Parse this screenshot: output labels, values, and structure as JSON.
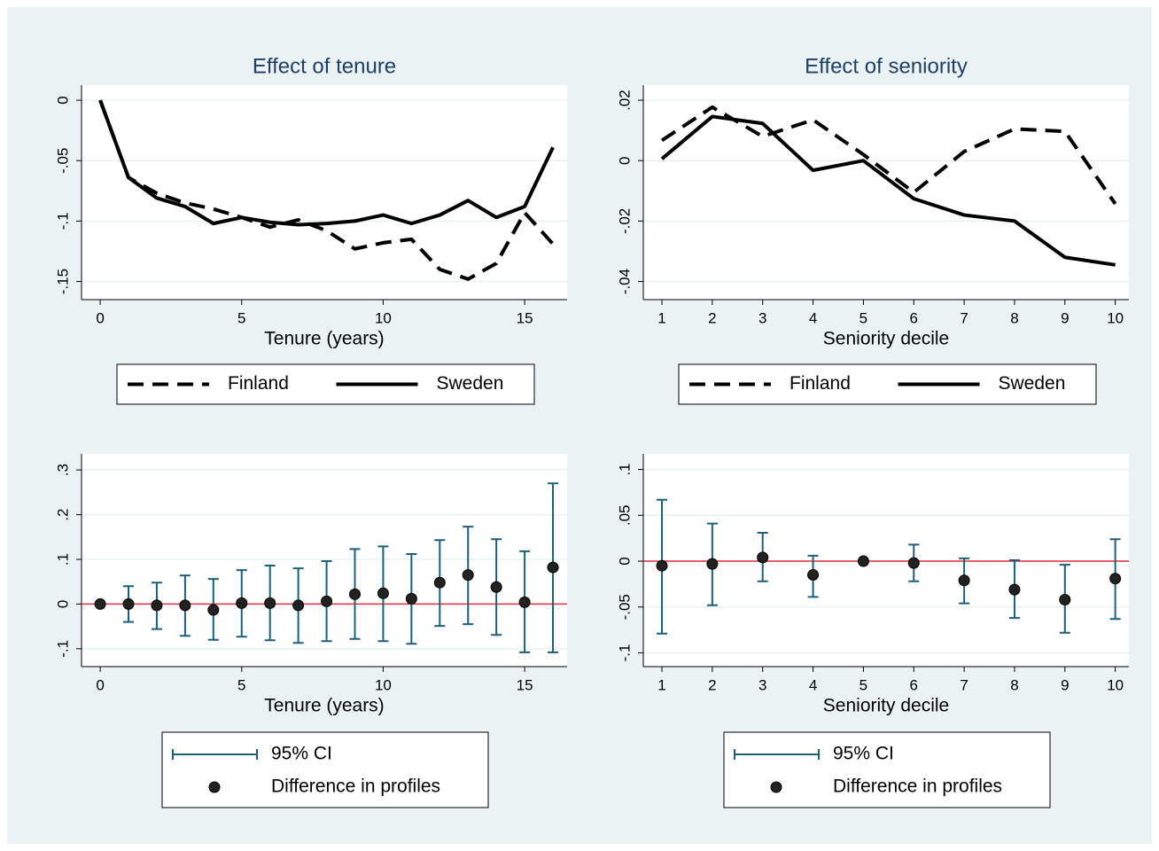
{
  "chart_data": [
    {
      "type": "line",
      "title": "Effect of tenure",
      "x_label": "Tenure (years)",
      "x": [
        0,
        1,
        2,
        3,
        4,
        5,
        6,
        7,
        8,
        9,
        10,
        11,
        12,
        13,
        14,
        15,
        16
      ],
      "series": [
        {
          "name": "Finland",
          "color": "#000000",
          "style": "dashed",
          "values": [
            0,
            -0.064,
            -0.077,
            -0.085,
            -0.09,
            -0.097,
            -0.105,
            -0.099,
            -0.108,
            -0.123,
            -0.118,
            -0.115,
            -0.14,
            -0.148,
            -0.135,
            -0.093,
            -0.119
          ]
        },
        {
          "name": "Sweden",
          "color": "#000000",
          "style": "solid",
          "values": [
            0,
            -0.064,
            -0.081,
            -0.088,
            -0.102,
            -0.097,
            -0.101,
            -0.103,
            -0.102,
            -0.1,
            -0.095,
            -0.102,
            -0.095,
            -0.083,
            -0.097,
            -0.088,
            -0.039
          ]
        }
      ],
      "xlim": [
        -0.66,
        16.5
      ],
      "xticks": [
        0,
        5,
        10,
        15
      ],
      "ylim": [
        -0.165,
        0.0125
      ],
      "yticks": [
        0,
        {
          "value": -0.05,
          "label": "-.05"
        },
        {
          "value": -0.1,
          "label": "-.1"
        },
        {
          "value": -0.15,
          "label": "-.15"
        }
      ],
      "grid": true,
      "legend": "below"
    },
    {
      "type": "line",
      "title": "Effect of seniority",
      "x_label": "Seniority decile",
      "x": [
        1,
        2,
        3,
        4,
        5,
        6,
        7,
        8,
        9,
        10
      ],
      "series": [
        {
          "name": "Finland",
          "color": "#000000",
          "style": "dashed",
          "values": [
            0.0067,
            0.0177,
            0.008,
            0.0135,
            0.002,
            -0.0105,
            0.003,
            0.0105,
            0.0097,
            -0.0143
          ]
        },
        {
          "name": "Sweden",
          "color": "#000000",
          "style": "solid",
          "values": [
            0.0006,
            0.0146,
            0.0123,
            -0.0032,
            0,
            -0.0126,
            -0.018,
            -0.02,
            -0.032,
            -0.0345
          ]
        }
      ],
      "xlim": [
        0.63,
        10.27
      ],
      "xticks": [
        1,
        2,
        3,
        4,
        5,
        6,
        7,
        8,
        9,
        10
      ],
      "ylim": [
        -0.046,
        0.025
      ],
      "yticks": [
        {
          "value": 0.02,
          "label": ".02"
        },
        0,
        {
          "value": -0.02,
          "label": "-.02"
        },
        {
          "value": -0.04,
          "label": "-.04"
        }
      ],
      "grid": true,
      "legend": "below"
    },
    {
      "type": "errorbar",
      "x_label": "Tenure (years)",
      "x": [
        0,
        1,
        2,
        3,
        4,
        5,
        6,
        7,
        8,
        9,
        10,
        11,
        12,
        13,
        14,
        15,
        16
      ],
      "series": [
        {
          "name": "95% CI",
          "color": "#1f5f7a",
          "lower": [
            0,
            -0.04,
            -0.056,
            -0.071,
            -0.08,
            -0.073,
            -0.081,
            -0.087,
            -0.083,
            -0.078,
            -0.083,
            -0.089,
            -0.049,
            -0.045,
            -0.069,
            -0.108,
            -0.108
          ],
          "upper": [
            0,
            0.04,
            0.048,
            0.064,
            0.056,
            0.076,
            0.086,
            0.08,
            0.096,
            0.123,
            0.129,
            0.112,
            0.143,
            0.173,
            0.145,
            0.118,
            0.27
          ]
        },
        {
          "name": "Difference in profiles",
          "color": "#222222",
          "values": [
            0,
            0,
            -0.003,
            -0.003,
            -0.013,
            0.002,
            0.002,
            -0.003,
            0.006,
            0.022,
            0.024,
            0.012,
            0.048,
            0.065,
            0.038,
            0.004,
            0.082
          ]
        }
      ],
      "hline": 0,
      "hline_color": "#e0303d",
      "xlim": [
        -0.66,
        16.5
      ],
      "xticks": [
        0,
        5,
        10,
        15
      ],
      "ylim": [
        -0.14,
        0.336
      ],
      "yticks": [
        {
          "value": 0.3,
          "label": ".3"
        },
        {
          "value": 0.2,
          "label": ".2"
        },
        {
          "value": 0.1,
          "label": ".1"
        },
        0,
        {
          "value": -0.1,
          "label": "-.1"
        }
      ],
      "grid": true,
      "legend": "below"
    },
    {
      "type": "errorbar",
      "x_label": "Seniority decile",
      "x": [
        1,
        2,
        3,
        4,
        5,
        6,
        7,
        8,
        9,
        10
      ],
      "series": [
        {
          "name": "95% CI",
          "color": "#1f5f7a",
          "lower": [
            -0.079,
            -0.048,
            -0.022,
            -0.039,
            0,
            -0.022,
            -0.046,
            -0.062,
            -0.078,
            -0.063
          ],
          "upper": [
            0.067,
            0.041,
            0.031,
            0.006,
            0,
            0.018,
            0.003,
            0.001,
            -0.004,
            0.024
          ]
        },
        {
          "name": "Difference in profiles",
          "color": "#222222",
          "values": [
            -0.005,
            -0.003,
            0.004,
            -0.015,
            0,
            -0.002,
            -0.021,
            -0.031,
            -0.042,
            -0.019
          ]
        }
      ],
      "hline": 0,
      "hline_color": "#e0303d",
      "xlim": [
        0.63,
        10.27
      ],
      "xticks": [
        1,
        2,
        3,
        4,
        5,
        6,
        7,
        8,
        9,
        10
      ],
      "ylim": [
        -0.115,
        0.117
      ],
      "yticks": [
        {
          "value": 0.1,
          "label": ".1"
        },
        {
          "value": 0.05,
          "label": ".05"
        },
        0,
        {
          "value": -0.05,
          "label": "-.05"
        },
        {
          "value": -0.1,
          "label": "-.1"
        }
      ],
      "grid": true,
      "legend": "below"
    }
  ]
}
